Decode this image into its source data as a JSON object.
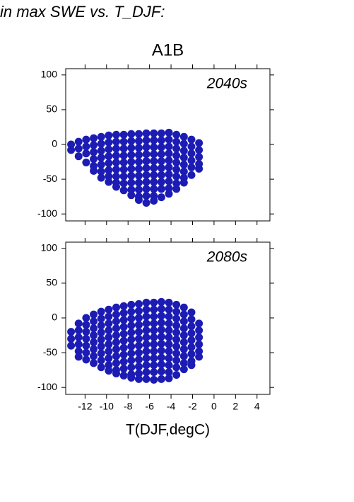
{
  "heading": "in max SWE vs. T_DJF:",
  "chart_data": [
    {
      "type": "scatter",
      "title": "A1B",
      "annotation": "2040s",
      "color": "#1c1cb4",
      "xlim": [
        -13.8,
        5.2
      ],
      "ylim": [
        -110,
        109
      ],
      "xticks": [
        -12,
        -10,
        -8,
        -6,
        -4,
        -2,
        0,
        2,
        4
      ],
      "yticks": [
        -100,
        -50,
        0,
        50,
        100
      ],
      "x": [
        -13.3,
        -13.3,
        -12.6,
        -12.6,
        -12.6,
        -11.9,
        -11.9,
        -11.9,
        -11.9,
        -11.2,
        -11.2,
        -11.2,
        -11.2,
        -11.2,
        -11.2,
        -10.5,
        -10.5,
        -10.5,
        -10.5,
        -10.5,
        -10.5,
        -10.5,
        -9.8,
        -9.8,
        -9.8,
        -9.8,
        -9.8,
        -9.8,
        -9.8,
        -9.8,
        -9.1,
        -9.1,
        -9.1,
        -9.1,
        -9.1,
        -9.1,
        -9.1,
        -9.1,
        -9.1,
        -8.4,
        -8.4,
        -8.4,
        -8.4,
        -8.4,
        -8.4,
        -8.4,
        -8.4,
        -8.4,
        -7.7,
        -7.7,
        -7.7,
        -7.7,
        -7.7,
        -7.7,
        -7.7,
        -7.7,
        -7.7,
        -7.7,
        -7,
        -7,
        -7,
        -7,
        -7,
        -7,
        -7,
        -7,
        -7,
        -7,
        -7,
        -6.3,
        -6.3,
        -6.3,
        -6.3,
        -6.3,
        -6.3,
        -6.3,
        -6.3,
        -6.3,
        -6.3,
        -6.3,
        -5.6,
        -5.6,
        -5.6,
        -5.6,
        -5.6,
        -5.6,
        -5.6,
        -5.6,
        -5.6,
        -5.6,
        -5.6,
        -4.9,
        -4.9,
        -4.9,
        -4.9,
        -4.9,
        -4.9,
        -4.9,
        -4.9,
        -4.9,
        -4.9,
        -4.2,
        -4.2,
        -4.2,
        -4.2,
        -4.2,
        -4.2,
        -4.2,
        -4.2,
        -4.2,
        -4.2,
        -3.5,
        -3.5,
        -3.5,
        -3.5,
        -3.5,
        -3.5,
        -3.5,
        -3.5,
        -3.5,
        -2.8,
        -2.8,
        -2.8,
        -2.8,
        -2.8,
        -2.8,
        -2.8,
        -2.8,
        -2.1,
        -2.1,
        -2.1,
        -2.1,
        -2.1,
        -2.1,
        -1.4,
        -1.4,
        -1.4,
        -1.4,
        -1.4
      ],
      "values": [
        0,
        -8,
        4,
        -6,
        -17,
        7,
        -3,
        -13,
        -26,
        9,
        -1,
        -11,
        -21,
        -31,
        -38,
        11,
        1,
        -9,
        -19,
        -29,
        -39,
        -48,
        13,
        3,
        -7,
        -17,
        -27,
        -37,
        -46,
        -54,
        14,
        4,
        -6,
        -16,
        -26,
        -36,
        -46,
        -55,
        -61,
        14,
        4,
        -6,
        -16,
        -26,
        -36,
        -46,
        -56,
        -66,
        15,
        5,
        -5,
        -15,
        -25,
        -35,
        -45,
        -55,
        -65,
        -73,
        15,
        5,
        -5,
        -15,
        -25,
        -35,
        -45,
        -55,
        -65,
        -75,
        -80,
        16,
        6,
        -4,
        -14,
        -24,
        -34,
        -44,
        -54,
        -64,
        -74,
        -84,
        16,
        6,
        -4,
        -14,
        -24,
        -34,
        -44,
        -54,
        -64,
        -74,
        -81,
        16,
        6,
        -4,
        -14,
        -24,
        -34,
        -44,
        -54,
        -64,
        -76,
        17,
        7,
        -3,
        -13,
        -23,
        -33,
        -43,
        -53,
        -63,
        -71,
        14,
        4,
        -6,
        -16,
        -26,
        -36,
        -46,
        -56,
        -64,
        11,
        1,
        -9,
        -19,
        -29,
        -39,
        -48,
        -55,
        7,
        -3,
        -13,
        -23,
        -33,
        -44,
        2,
        -8,
        -18,
        -28,
        -35
      ]
    },
    {
      "type": "scatter",
      "annotation": "2080s",
      "xlabel": "T(DJF,degC)",
      "color": "#1c1cb4",
      "xlim": [
        -13.8,
        5.2
      ],
      "ylim": [
        -110,
        109
      ],
      "xticks": [
        -12,
        -10,
        -8,
        -6,
        -4,
        -2,
        0,
        2,
        4
      ],
      "yticks": [
        -100,
        -50,
        0,
        50,
        100
      ],
      "x": [
        -13.3,
        -13.3,
        -13.3,
        -12.6,
        -12.6,
        -12.6,
        -12.6,
        -12.6,
        -12.6,
        -11.9,
        -11.9,
        -11.9,
        -11.9,
        -11.9,
        -11.9,
        -11.9,
        -11.2,
        -11.2,
        -11.2,
        -11.2,
        -11.2,
        -11.2,
        -11.2,
        -11.2,
        -10.5,
        -10.5,
        -10.5,
        -10.5,
        -10.5,
        -10.5,
        -10.5,
        -10.5,
        -10.5,
        -9.8,
        -9.8,
        -9.8,
        -9.8,
        -9.8,
        -9.8,
        -9.8,
        -9.8,
        -9.8,
        -9.8,
        -9.1,
        -9.1,
        -9.1,
        -9.1,
        -9.1,
        -9.1,
        -9.1,
        -9.1,
        -9.1,
        -9.1,
        -9.1,
        -8.4,
        -8.4,
        -8.4,
        -8.4,
        -8.4,
        -8.4,
        -8.4,
        -8.4,
        -8.4,
        -8.4,
        -8.4,
        -7.7,
        -7.7,
        -7.7,
        -7.7,
        -7.7,
        -7.7,
        -7.7,
        -7.7,
        -7.7,
        -7.7,
        -7.7,
        -7.7,
        -7,
        -7,
        -7,
        -7,
        -7,
        -7,
        -7,
        -7,
        -7,
        -7,
        -7,
        -7,
        -6.3,
        -6.3,
        -6.3,
        -6.3,
        -6.3,
        -6.3,
        -6.3,
        -6.3,
        -6.3,
        -6.3,
        -6.3,
        -6.3,
        -5.6,
        -5.6,
        -5.6,
        -5.6,
        -5.6,
        -5.6,
        -5.6,
        -5.6,
        -5.6,
        -5.6,
        -5.6,
        -5.6,
        -4.9,
        -4.9,
        -4.9,
        -4.9,
        -4.9,
        -4.9,
        -4.9,
        -4.9,
        -4.9,
        -4.9,
        -4.9,
        -4.9,
        -4.2,
        -4.2,
        -4.2,
        -4.2,
        -4.2,
        -4.2,
        -4.2,
        -4.2,
        -4.2,
        -4.2,
        -4.2,
        -4.2,
        -3.5,
        -3.5,
        -3.5,
        -3.5,
        -3.5,
        -3.5,
        -3.5,
        -3.5,
        -3.5,
        -3.5,
        -3.5,
        -2.8,
        -2.8,
        -2.8,
        -2.8,
        -2.8,
        -2.8,
        -2.8,
        -2.8,
        -2.8,
        -2.8,
        -2.1,
        -2.1,
        -2.1,
        -2.1,
        -2.1,
        -2.1,
        -2.1,
        -2.1,
        -2.1,
        -1.4,
        -1.4,
        -1.4,
        -1.4,
        -1.4,
        -1.4
      ],
      "values": [
        -20,
        -30,
        -40,
        -8,
        -18,
        -28,
        -38,
        -48,
        -56,
        0,
        -10,
        -20,
        -30,
        -40,
        -50,
        -60,
        5,
        -5,
        -15,
        -25,
        -35,
        -45,
        -55,
        -65,
        9,
        -1,
        -11,
        -21,
        -31,
        -41,
        -51,
        -61,
        -71,
        12,
        2,
        -8,
        -18,
        -28,
        -38,
        -48,
        -58,
        -68,
        -76,
        15,
        5,
        -5,
        -15,
        -25,
        -35,
        -45,
        -55,
        -65,
        -75,
        -80,
        17,
        7,
        -3,
        -13,
        -23,
        -33,
        -43,
        -53,
        -63,
        -73,
        -83,
        19,
        9,
        -1,
        -11,
        -21,
        -31,
        -41,
        -51,
        -61,
        -71,
        -81,
        -86,
        20,
        10,
        0,
        -10,
        -20,
        -30,
        -40,
        -50,
        -60,
        -70,
        -80,
        -88,
        22,
        12,
        2,
        -8,
        -18,
        -28,
        -38,
        -48,
        -58,
        -68,
        -78,
        -88,
        22,
        12,
        2,
        -8,
        -18,
        -28,
        -38,
        -48,
        -58,
        -68,
        -78,
        -89,
        23,
        13,
        3,
        -7,
        -17,
        -27,
        -37,
        -47,
        -57,
        -67,
        -77,
        -88,
        22,
        12,
        2,
        -8,
        -18,
        -28,
        -38,
        -48,
        -58,
        -68,
        -78,
        -87,
        19,
        9,
        -1,
        -11,
        -21,
        -31,
        -41,
        -51,
        -61,
        -71,
        -82,
        15,
        5,
        -5,
        -15,
        -25,
        -35,
        -45,
        -55,
        -65,
        -74,
        8,
        -2,
        -12,
        -22,
        -32,
        -42,
        -52,
        -62,
        -68,
        -8,
        -18,
        -28,
        -38,
        -48,
        -56
      ]
    }
  ]
}
